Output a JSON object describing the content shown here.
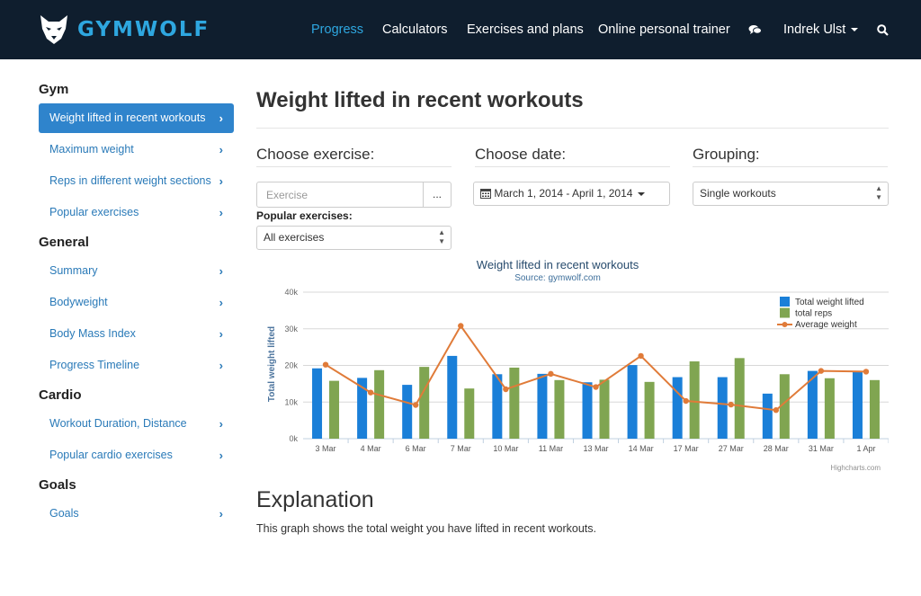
{
  "brand": {
    "name": "GYMWOLF"
  },
  "nav": {
    "items": [
      {
        "label": "Progress",
        "active": true
      },
      {
        "label": "Calculators"
      },
      {
        "label": "Exercises and plans"
      },
      {
        "label": "Online personal trainer"
      }
    ],
    "chat_icon": "chat-icon",
    "user_name": "Indrek Ulst",
    "search_icon": "search-icon"
  },
  "sidebar": {
    "sections": [
      {
        "heading": "Gym",
        "items": [
          {
            "label": "Weight lifted in recent workouts",
            "active": true
          },
          {
            "label": "Maximum weight"
          },
          {
            "label": "Reps in different weight sections"
          },
          {
            "label": "Popular exercises"
          }
        ]
      },
      {
        "heading": "General",
        "items": [
          {
            "label": "Summary"
          },
          {
            "label": "Bodyweight"
          },
          {
            "label": "Body Mass Index"
          },
          {
            "label": "Progress Timeline"
          }
        ]
      },
      {
        "heading": "Cardio",
        "items": [
          {
            "label": "Workout Duration, Distance"
          },
          {
            "label": "Popular cardio exercises"
          }
        ]
      },
      {
        "heading": "Goals",
        "items": [
          {
            "label": "Goals"
          }
        ]
      }
    ]
  },
  "main": {
    "title": "Weight lifted in recent workouts",
    "choose_exercise_label": "Choose exercise:",
    "choose_date_label": "Choose date:",
    "grouping_label": "Grouping:",
    "exercise_placeholder": "Exercise",
    "exercise_button": "...",
    "date_range": "March 1, 2014 - April 1, 2014",
    "grouping_value": "Single workouts",
    "popular_label": "Popular exercises:",
    "popular_value": "All exercises",
    "explanation_title": "Explanation",
    "explanation_text": "This graph shows the total weight you have lifted in recent workouts."
  },
  "chart_data": {
    "type": "bar",
    "title": "Weight lifted in recent workouts",
    "subtitle": "Source: gymwolf.com",
    "ylabel": "Total weight lifted",
    "ylim": [
      0,
      40000
    ],
    "yticks": [
      "0k",
      "10k",
      "20k",
      "30k",
      "40k"
    ],
    "categories": [
      "3 Mar",
      "4 Mar",
      "6 Mar",
      "7 Mar",
      "10 Mar",
      "11 Mar",
      "13 Mar",
      "14 Mar",
      "17 Mar",
      "27 Mar",
      "28 Mar",
      "31 Mar",
      "1 Apr"
    ],
    "series": [
      {
        "name": "Total weight lifted",
        "type": "bar",
        "color": "#1a7fd8",
        "values": [
          19200,
          16600,
          14700,
          22600,
          17600,
          17700,
          15400,
          20100,
          16800,
          16800,
          12300,
          18500,
          18200
        ]
      },
      {
        "name": "total reps",
        "type": "bar",
        "color": "#80a551",
        "values": [
          15800,
          18700,
          19600,
          13700,
          19400,
          16000,
          16100,
          15500,
          21100,
          22000,
          17600,
          16500,
          16000
        ]
      },
      {
        "name": "Average weight",
        "type": "line",
        "color": "#e07b39",
        "values": [
          20200,
          12600,
          9200,
          30800,
          13500,
          17700,
          14100,
          22600,
          10300,
          9300,
          7800,
          18500,
          18300
        ]
      }
    ],
    "legend_position": "top-right",
    "credit": "Highcharts.com",
    "grid": true
  }
}
